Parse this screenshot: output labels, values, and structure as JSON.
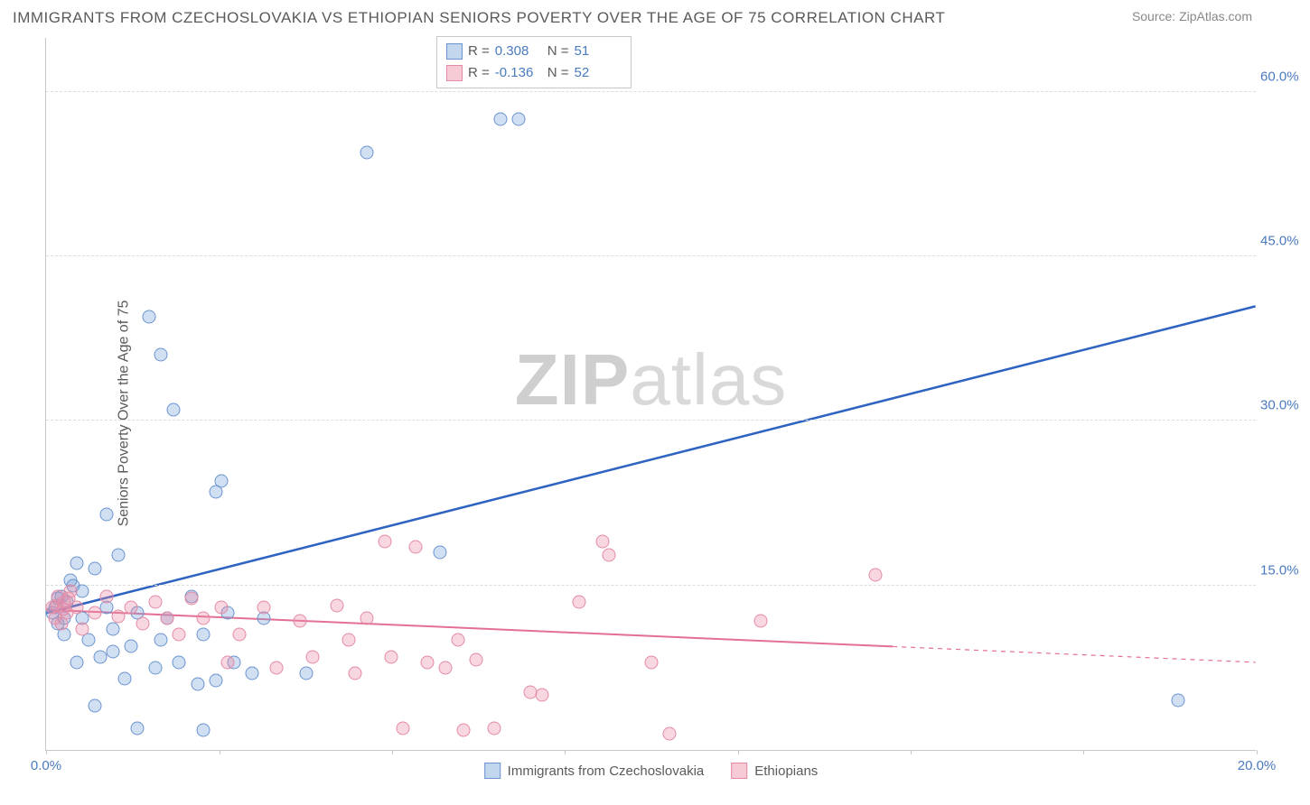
{
  "title": "IMMIGRANTS FROM CZECHOSLOVAKIA VS ETHIOPIAN SENIORS POVERTY OVER THE AGE OF 75 CORRELATION CHART",
  "source": "Source: ZipAtlas.com",
  "y_axis_label": "Seniors Poverty Over the Age of 75",
  "watermark_zip": "ZIP",
  "watermark_atlas": "atlas",
  "chart": {
    "type": "scatter",
    "xlim": [
      0,
      20
    ],
    "ylim": [
      0,
      65
    ],
    "yticks": [
      15,
      30,
      45,
      60
    ],
    "ytick_labels": [
      "15.0%",
      "30.0%",
      "45.0%",
      "60.0%"
    ],
    "xticks": [
      0,
      2.86,
      5.71,
      8.57,
      11.43,
      14.29,
      17.14,
      20
    ],
    "xtick_labels": [
      "0.0%",
      "",
      "",
      "",
      "",
      "",
      "",
      "20.0%"
    ],
    "background_color": "#ffffff",
    "grid_color": "#dcdcdc",
    "axis_color": "#c8c8c8",
    "tick_label_color": "#4a7abf",
    "axis_label_color": "#5a5a5a",
    "title_color": "#5a5a5a",
    "title_fontsize": 17,
    "label_fontsize": 16,
    "tick_fontsize": 15,
    "marker_size": 15,
    "series": [
      {
        "name": "Immigrants from Czechoslovakia",
        "key": "a",
        "fill": "rgba(120,163,218,0.35)",
        "stroke": "#6a94cf",
        "R": "0.308",
        "N": "51",
        "trend": {
          "x1": 0,
          "y1": 12.5,
          "x2": 20,
          "y2": 40.5,
          "color": "#2f63c2",
          "width": 2.5,
          "dash_after_x": null
        },
        "points": [
          [
            0.1,
            12.5
          ],
          [
            0.15,
            13.0
          ],
          [
            0.2,
            11.5
          ],
          [
            0.25,
            14.0
          ],
          [
            0.3,
            12.0
          ],
          [
            0.3,
            10.5
          ],
          [
            0.35,
            13.5
          ],
          [
            0.4,
            15.5
          ],
          [
            0.5,
            17.0
          ],
          [
            0.5,
            8.0
          ],
          [
            0.6,
            12.0
          ],
          [
            0.7,
            10.0
          ],
          [
            0.8,
            16.5
          ],
          [
            0.8,
            4.0
          ],
          [
            0.9,
            8.5
          ],
          [
            1.0,
            13.0
          ],
          [
            1.0,
            21.5
          ],
          [
            1.1,
            9.0
          ],
          [
            1.1,
            11.0
          ],
          [
            1.2,
            17.8
          ],
          [
            1.3,
            6.5
          ],
          [
            1.4,
            9.5
          ],
          [
            1.5,
            12.5
          ],
          [
            1.5,
            2.0
          ],
          [
            1.7,
            39.5
          ],
          [
            1.8,
            7.5
          ],
          [
            1.9,
            10.0
          ],
          [
            1.9,
            36.0
          ],
          [
            2.0,
            12.0
          ],
          [
            2.1,
            31.0
          ],
          [
            2.2,
            8.0
          ],
          [
            2.4,
            14.0
          ],
          [
            2.5,
            6.0
          ],
          [
            2.6,
            10.5
          ],
          [
            2.6,
            1.8
          ],
          [
            2.8,
            23.5
          ],
          [
            2.8,
            6.3
          ],
          [
            2.9,
            24.5
          ],
          [
            3.0,
            12.5
          ],
          [
            3.1,
            8.0
          ],
          [
            3.4,
            7.0
          ],
          [
            3.6,
            12.0
          ],
          [
            4.3,
            7.0
          ],
          [
            5.3,
            54.5
          ],
          [
            6.5,
            18.0
          ],
          [
            7.5,
            57.5
          ],
          [
            7.8,
            57.5
          ],
          [
            18.7,
            4.5
          ],
          [
            0.2,
            13.8
          ],
          [
            0.45,
            15.0
          ],
          [
            0.6,
            14.5
          ]
        ]
      },
      {
        "name": "Ethiopians",
        "key": "b",
        "fill": "rgba(235,140,165,0.35)",
        "stroke": "#e48aa5",
        "R": "-0.136",
        "N": "52",
        "trend": {
          "x1": 0,
          "y1": 12.8,
          "x2": 20,
          "y2": 8.0,
          "color": "#e36f94",
          "width": 2,
          "dash_after_x": 14.0
        },
        "points": [
          [
            0.1,
            13.0
          ],
          [
            0.15,
            12.0
          ],
          [
            0.2,
            14.0
          ],
          [
            0.25,
            11.5
          ],
          [
            0.3,
            13.5
          ],
          [
            0.35,
            12.5
          ],
          [
            0.4,
            14.5
          ],
          [
            0.5,
            13.0
          ],
          [
            0.6,
            11.0
          ],
          [
            0.8,
            12.5
          ],
          [
            1.0,
            14.0
          ],
          [
            1.2,
            12.2
          ],
          [
            1.4,
            13.0
          ],
          [
            1.6,
            11.5
          ],
          [
            1.8,
            13.5
          ],
          [
            2.0,
            12.0
          ],
          [
            2.2,
            10.5
          ],
          [
            2.4,
            13.8
          ],
          [
            2.6,
            12.0
          ],
          [
            2.9,
            13.0
          ],
          [
            3.0,
            8.0
          ],
          [
            3.2,
            10.5
          ],
          [
            3.6,
            13.0
          ],
          [
            3.8,
            7.5
          ],
          [
            4.2,
            11.8
          ],
          [
            4.4,
            8.5
          ],
          [
            4.8,
            13.2
          ],
          [
            5.0,
            10.0
          ],
          [
            5.1,
            7.0
          ],
          [
            5.3,
            12.0
          ],
          [
            5.6,
            19.0
          ],
          [
            5.7,
            8.5
          ],
          [
            5.9,
            2.0
          ],
          [
            6.1,
            18.5
          ],
          [
            6.3,
            8.0
          ],
          [
            6.6,
            7.5
          ],
          [
            6.8,
            10.0
          ],
          [
            6.9,
            1.8
          ],
          [
            7.1,
            8.2
          ],
          [
            7.4,
            2.0
          ],
          [
            8.0,
            5.3
          ],
          [
            8.2,
            5.0
          ],
          [
            8.8,
            13.5
          ],
          [
            9.2,
            19.0
          ],
          [
            9.3,
            17.8
          ],
          [
            10.0,
            8.0
          ],
          [
            10.3,
            1.5
          ],
          [
            11.8,
            11.8
          ],
          [
            13.7,
            16.0
          ],
          [
            0.18,
            13.2
          ],
          [
            0.28,
            12.8
          ],
          [
            0.38,
            13.8
          ]
        ]
      }
    ],
    "legend_top_labels": {
      "R": "R  =",
      "N": "N  ="
    },
    "legend_bottom": [
      {
        "key": "a",
        "label": "Immigrants from Czechoslovakia"
      },
      {
        "key": "b",
        "label": "Ethiopians"
      }
    ]
  }
}
